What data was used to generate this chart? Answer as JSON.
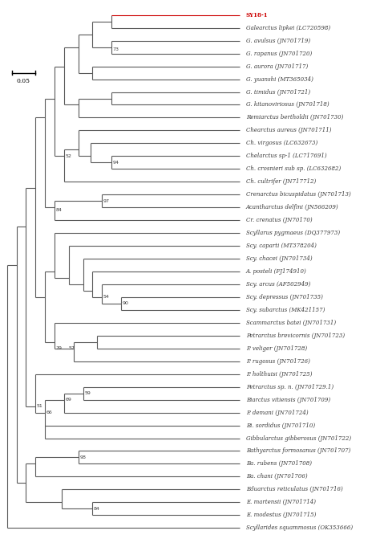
{
  "background_color": "#ffffff",
  "line_color": "#5a5a5a",
  "label_color": "#3a3a3a",
  "highlight_color": "#cc0000",
  "scale_bar_label": "0.05",
  "taxa": [
    {
      "name": "SY18-1",
      "y": 1,
      "highlight": true,
      "italic": false
    },
    {
      "name": "Galearctus lipkei (LC720598)",
      "y": 2,
      "highlight": false,
      "italic": true
    },
    {
      "name": "G. avulsus (JN701719)",
      "y": 3,
      "highlight": false,
      "italic": true
    },
    {
      "name": "G. rapanus (JN701720)",
      "y": 4,
      "highlight": false,
      "italic": true
    },
    {
      "name": "G. aurora (JN701717)",
      "y": 5,
      "highlight": false,
      "italic": true
    },
    {
      "name": "G. yuanshi (MT365034)",
      "y": 6,
      "highlight": false,
      "italic": true
    },
    {
      "name": "G. timidus (JN701721)",
      "y": 7,
      "highlight": false,
      "italic": true
    },
    {
      "name": "G. kitanoviriosus (JN701718)",
      "y": 8,
      "highlight": false,
      "italic": true
    },
    {
      "name": "Remiarctus bertholdii (JN701730)",
      "y": 9,
      "highlight": false,
      "italic": true
    },
    {
      "name": "Chearctus aureus (JN701711)",
      "y": 10,
      "highlight": false,
      "italic": true
    },
    {
      "name": "Ch. virgosus (LC632673)",
      "y": 11,
      "highlight": false,
      "italic": true
    },
    {
      "name": "Chelarctus sp-1 (LC717691)",
      "y": 12,
      "highlight": false,
      "italic": true
    },
    {
      "name": "Ch. crosnieri sub sp. (LC632682)",
      "y": 13,
      "highlight": false,
      "italic": true
    },
    {
      "name": "Ch. cultrifer (JN717712)",
      "y": 14,
      "highlight": false,
      "italic": true
    },
    {
      "name": "Crenarctus bicuspidatus (JN701713)",
      "y": 15,
      "highlight": false,
      "italic": true
    },
    {
      "name": "Acantharctus delfini (JN566209)",
      "y": 16,
      "highlight": false,
      "italic": true
    },
    {
      "name": "Cr. crenatus (JN70170)",
      "y": 17,
      "highlight": false,
      "italic": true
    },
    {
      "name": "Scyllarus pygmaeus (DQ377973)",
      "y": 18,
      "highlight": false,
      "italic": true
    },
    {
      "name": "Scy. caparti (MT378204)",
      "y": 19,
      "highlight": false,
      "italic": true
    },
    {
      "name": "Scy. chacei (JN701734)",
      "y": 20,
      "highlight": false,
      "italic": true
    },
    {
      "name": "A. posteli (FJ174910)",
      "y": 21,
      "highlight": false,
      "italic": true
    },
    {
      "name": "Scy. arcus (AF502949)",
      "y": 22,
      "highlight": false,
      "italic": true
    },
    {
      "name": "Scy. depressus (JN701735)",
      "y": 23,
      "highlight": false,
      "italic": true
    },
    {
      "name": "Scy. subarctus (MK421157)",
      "y": 24,
      "highlight": false,
      "italic": true
    },
    {
      "name": "Scammarctus batei (JN701731)",
      "y": 25,
      "highlight": false,
      "italic": true
    },
    {
      "name": "Petrarctus brevicornis (JN701723)",
      "y": 26,
      "highlight": false,
      "italic": true
    },
    {
      "name": "P. veliger (JN701728)",
      "y": 27,
      "highlight": false,
      "italic": true
    },
    {
      "name": "P. rugosus (JN701726)",
      "y": 28,
      "highlight": false,
      "italic": true
    },
    {
      "name": "P. holthuisi (JN701725)",
      "y": 29,
      "highlight": false,
      "italic": true
    },
    {
      "name": "Petrarctus sp. n. (JN701729.1)",
      "y": 30,
      "highlight": false,
      "italic": true
    },
    {
      "name": "Biarctus vitiensis (JN701709)",
      "y": 31,
      "highlight": false,
      "italic": true
    },
    {
      "name": "P. demani (JN701724)",
      "y": 32,
      "highlight": false,
      "italic": true
    },
    {
      "name": "Bi. sordidus (JN701710)",
      "y": 33,
      "highlight": false,
      "italic": true
    },
    {
      "name": "Gibbularctus gibberosus (JN701722)",
      "y": 34,
      "highlight": false,
      "italic": true
    },
    {
      "name": "Bathyarctus formosanus (JN701707)",
      "y": 35,
      "highlight": false,
      "italic": true
    },
    {
      "name": "Ba. rubens (JN701708)",
      "y": 36,
      "highlight": false,
      "italic": true
    },
    {
      "name": "Ba. chani (JN701706)",
      "y": 37,
      "highlight": false,
      "italic": true
    },
    {
      "name": "Eduarctus reticulatus (JN701716)",
      "y": 38,
      "highlight": false,
      "italic": true
    },
    {
      "name": "E. martensii (JN701714)",
      "y": 39,
      "highlight": false,
      "italic": true
    },
    {
      "name": "E. modestus (JN701715)",
      "y": 40,
      "highlight": false,
      "italic": true
    },
    {
      "name": "Scyllarides squammosus (OK353666)",
      "y": 41,
      "highlight": false,
      "italic": true
    }
  ]
}
